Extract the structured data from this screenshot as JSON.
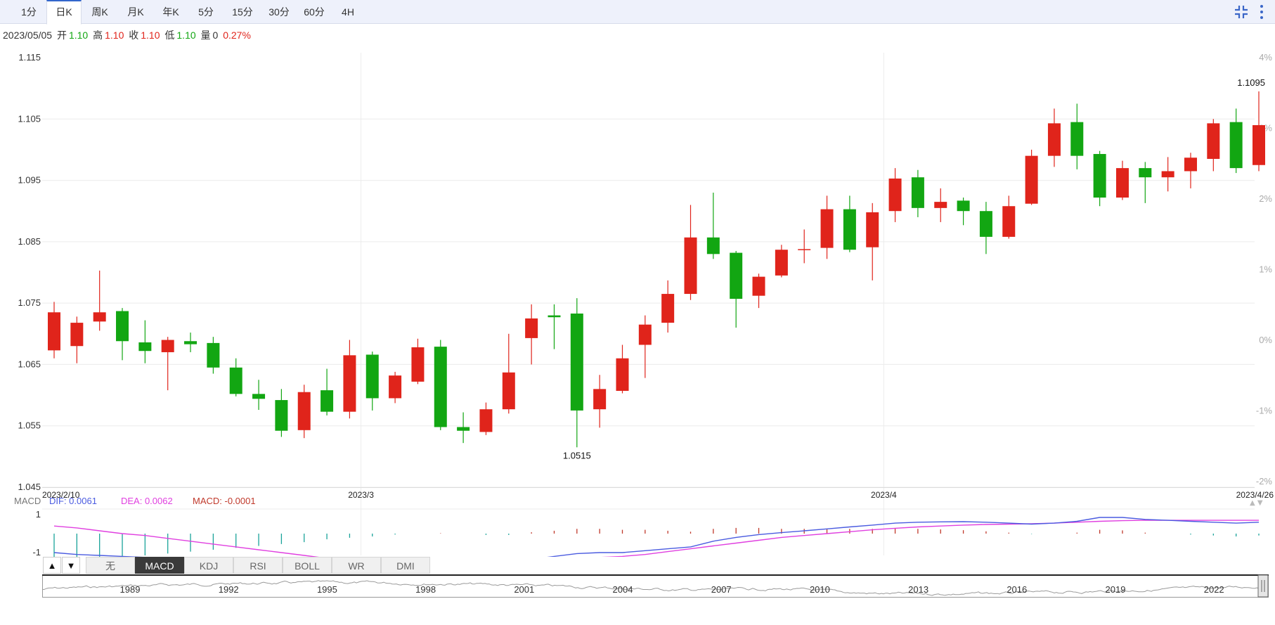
{
  "tabs": [
    {
      "label": "1分",
      "active": false
    },
    {
      "label": "日K",
      "active": true
    },
    {
      "label": "周K",
      "active": false
    },
    {
      "label": "月K",
      "active": false
    },
    {
      "label": "年K",
      "active": false
    },
    {
      "label": "5分",
      "active": false
    },
    {
      "label": "15分",
      "active": false
    },
    {
      "label": "30分",
      "active": false
    },
    {
      "label": "60分",
      "active": false
    },
    {
      "label": "4H",
      "active": false
    }
  ],
  "toolbar": {
    "collapse_icon": "collapse-icon",
    "more_icon": "more-vertical-icon",
    "accent": "#3366cc"
  },
  "info": {
    "date": "2023/05/05",
    "open_label": "开",
    "open": "1.10",
    "high_label": "高",
    "high": "1.10",
    "close_label": "收",
    "close": "1.10",
    "low_label": "低",
    "low": "1.10",
    "volume_label": "量",
    "volume": "0",
    "change": "0.27%"
  },
  "chart_data": {
    "type": "candlestick",
    "up_color": "#e0241b",
    "down_color": "#12a612",
    "y_ticks": [
      "1.115",
      "1.105",
      "1.095",
      "1.085",
      "1.075",
      "1.065",
      "1.055",
      "1.045"
    ],
    "ylim": [
      1.045,
      1.115
    ],
    "pct_ticks": [
      "4%",
      "3%",
      "2%",
      "1%",
      "0%",
      "-1%",
      "-2%"
    ],
    "x_labels": [
      {
        "label": "2023/2/10",
        "index": 0
      },
      {
        "label": "2023/3",
        "index": 13.5
      },
      {
        "label": "2023/4",
        "index": 36.5
      },
      {
        "label": "2023/4/26",
        "index": 52
      }
    ],
    "x_gridlines": [
      13.5,
      36.5
    ],
    "candles": [
      {
        "o": 1.0673,
        "h": 1.0752,
        "l": 1.066,
        "c": 1.0735
      },
      {
        "o": 1.068,
        "h": 1.0728,
        "l": 1.0652,
        "c": 1.0718
      },
      {
        "o": 1.072,
        "h": 1.0803,
        "l": 1.0705,
        "c": 1.0735
      },
      {
        "o": 1.0737,
        "h": 1.0742,
        "l": 1.0657,
        "c": 1.0688
      },
      {
        "o": 1.0686,
        "h": 1.0722,
        "l": 1.0652,
        "c": 1.0672
      },
      {
        "o": 1.067,
        "h": 1.0695,
        "l": 1.0608,
        "c": 1.069
      },
      {
        "o": 1.0688,
        "h": 1.0702,
        "l": 1.067,
        "c": 1.0683
      },
      {
        "o": 1.0685,
        "h": 1.0695,
        "l": 1.0635,
        "c": 1.0645
      },
      {
        "o": 1.0645,
        "h": 1.066,
        "l": 1.0598,
        "c": 1.0602
      },
      {
        "o": 1.0602,
        "h": 1.0625,
        "l": 1.0576,
        "c": 1.0594
      },
      {
        "o": 1.0592,
        "h": 1.061,
        "l": 1.0532,
        "c": 1.0542
      },
      {
        "o": 1.0543,
        "h": 1.0617,
        "l": 1.053,
        "c": 1.0605
      },
      {
        "o": 1.0608,
        "h": 1.0643,
        "l": 1.0567,
        "c": 1.0573
      },
      {
        "o": 1.0573,
        "h": 1.069,
        "l": 1.0562,
        "c": 1.0665
      },
      {
        "o": 1.0666,
        "h": 1.0671,
        "l": 1.0575,
        "c": 1.0595
      },
      {
        "o": 1.0595,
        "h": 1.0638,
        "l": 1.0587,
        "c": 1.0632
      },
      {
        "o": 1.0622,
        "h": 1.0692,
        "l": 1.0618,
        "c": 1.0678
      },
      {
        "o": 1.0679,
        "h": 1.069,
        "l": 1.0543,
        "c": 1.0548
      },
      {
        "o": 1.0548,
        "h": 1.0572,
        "l": 1.0522,
        "c": 1.0542
      },
      {
        "o": 1.054,
        "h": 1.0588,
        "l": 1.0535,
        "c": 1.0577
      },
      {
        "o": 1.0577,
        "h": 1.07,
        "l": 1.057,
        "c": 1.0637
      },
      {
        "o": 1.0693,
        "h": 1.0748,
        "l": 1.065,
        "c": 1.0725
      },
      {
        "o": 1.073,
        "h": 1.0748,
        "l": 1.0675,
        "c": 1.0727
      },
      {
        "o": 1.0733,
        "h": 1.0758,
        "l": 1.0515,
        "c": 1.0575
      },
      {
        "o": 1.0577,
        "h": 1.0633,
        "l": 1.0547,
        "c": 1.061
      },
      {
        "o": 1.0607,
        "h": 1.0682,
        "l": 1.0603,
        "c": 1.066
      },
      {
        "o": 1.0682,
        "h": 1.073,
        "l": 1.0628,
        "c": 1.0715
      },
      {
        "o": 1.0718,
        "h": 1.0787,
        "l": 1.0702,
        "c": 1.0765
      },
      {
        "o": 1.0765,
        "h": 1.091,
        "l": 1.0755,
        "c": 1.0857
      },
      {
        "o": 1.0857,
        "h": 1.093,
        "l": 1.0822,
        "c": 1.083
      },
      {
        "o": 1.0832,
        "h": 1.0835,
        "l": 1.071,
        "c": 1.0757
      },
      {
        "o": 1.0762,
        "h": 1.0798,
        "l": 1.0742,
        "c": 1.0793
      },
      {
        "o": 1.0795,
        "h": 1.0845,
        "l": 1.0792,
        "c": 1.0837
      },
      {
        "o": 1.0838,
        "h": 1.087,
        "l": 1.0815,
        "c": 1.0838
      },
      {
        "o": 1.084,
        "h": 1.0925,
        "l": 1.0822,
        "c": 1.0903
      },
      {
        "o": 1.0903,
        "h": 1.0925,
        "l": 1.0833,
        "c": 1.0837
      },
      {
        "o": 1.0841,
        "h": 1.0913,
        "l": 1.0787,
        "c": 1.0898
      },
      {
        "o": 1.09,
        "h": 1.097,
        "l": 1.0882,
        "c": 1.0953
      },
      {
        "o": 1.0955,
        "h": 1.0967,
        "l": 1.089,
        "c": 1.0905
      },
      {
        "o": 1.0905,
        "h": 1.0937,
        "l": 1.0882,
        "c": 1.0915
      },
      {
        "o": 1.0917,
        "h": 1.0922,
        "l": 1.0877,
        "c": 1.09
      },
      {
        "o": 1.09,
        "h": 1.0915,
        "l": 1.083,
        "c": 1.0858
      },
      {
        "o": 1.0858,
        "h": 1.0925,
        "l": 1.0855,
        "c": 1.0908
      },
      {
        "o": 1.0912,
        "h": 1.1,
        "l": 1.091,
        "c": 1.099
      },
      {
        "o": 1.099,
        "h": 1.1067,
        "l": 1.0972,
        "c": 1.1043
      },
      {
        "o": 1.1045,
        "h": 1.1075,
        "l": 1.0968,
        "c": 1.099
      },
      {
        "o": 1.0993,
        "h": 1.0998,
        "l": 1.0908,
        "c": 1.0922
      },
      {
        "o": 1.0922,
        "h": 1.0982,
        "l": 1.0918,
        "c": 1.097
      },
      {
        "o": 1.097,
        "h": 1.098,
        "l": 1.0913,
        "c": 1.0955
      },
      {
        "o": 1.0955,
        "h": 1.0988,
        "l": 1.0932,
        "c": 1.0965
      },
      {
        "o": 1.0965,
        "h": 1.0995,
        "l": 1.0937,
        "c": 1.0987
      },
      {
        "o": 1.0985,
        "h": 1.105,
        "l": 1.0965,
        "c": 1.1043
      },
      {
        "o": 1.1045,
        "h": 1.1067,
        "l": 1.0962,
        "c": 1.097
      },
      {
        "o": 1.0975,
        "h": 1.1095,
        "l": 1.0965,
        "c": 1.104
      }
    ],
    "annotations": [
      {
        "label": "1.0515",
        "index": 23,
        "value": 1.0515,
        "position": "below"
      },
      {
        "label": "1.1095",
        "index": 53,
        "value": 1.1095,
        "position": "above"
      }
    ],
    "macd": {
      "label": "MACD",
      "dif_label": "DIF: 0.0061",
      "dea_label": "DEA: 0.0062",
      "macd_label": "MACD: -0.0001",
      "dif_color": "#4a5be0",
      "dea_color": "#e040e0",
      "macd_color": "#c0392b",
      "y_ticks": [
        "1",
        "-1"
      ],
      "dif": [
        -1.0,
        -1.1,
        -1.15,
        -1.2,
        -1.25,
        -1.3,
        -1.35,
        -1.4,
        -1.45,
        -1.5,
        -1.55,
        -1.58,
        -1.6,
        -1.62,
        -1.6,
        -1.55,
        -1.5,
        -1.48,
        -1.5,
        -1.55,
        -1.52,
        -1.35,
        -1.2,
        -1.05,
        -1.0,
        -1.0,
        -0.9,
        -0.8,
        -0.7,
        -0.4,
        -0.2,
        -0.05,
        0.05,
        0.15,
        0.25,
        0.35,
        0.45,
        0.55,
        0.6,
        0.62,
        0.63,
        0.6,
        0.55,
        0.5,
        0.55,
        0.65,
        0.85,
        0.85,
        0.75,
        0.7,
        0.65,
        0.6,
        0.55,
        0.6
      ],
      "dea": [
        0.4,
        0.3,
        0.15,
        0.0,
        -0.1,
        -0.25,
        -0.4,
        -0.55,
        -0.7,
        -0.85,
        -1.0,
        -1.15,
        -1.3,
        -1.4,
        -1.45,
        -1.5,
        -1.5,
        -1.5,
        -1.5,
        -1.48,
        -1.45,
        -1.42,
        -1.35,
        -1.3,
        -1.25,
        -1.2,
        -1.1,
        -0.95,
        -0.8,
        -0.65,
        -0.5,
        -0.35,
        -0.2,
        -0.1,
        0.0,
        0.1,
        0.2,
        0.28,
        0.35,
        0.4,
        0.45,
        0.48,
        0.5,
        0.52,
        0.55,
        0.6,
        0.65,
        0.68,
        0.7,
        0.7,
        0.7,
        0.7,
        0.7,
        0.7
      ],
      "hist": [
        -1.4,
        -1.3,
        -1.25,
        -1.2,
        -1.15,
        -1.05,
        -0.95,
        -0.85,
        -0.75,
        -0.65,
        -0.55,
        -0.45,
        -0.3,
        -0.22,
        -0.15,
        -0.05,
        0.0,
        0.02,
        0.0,
        -0.07,
        -0.07,
        0.07,
        0.15,
        0.25,
        0.25,
        0.2,
        0.2,
        0.15,
        0.1,
        0.25,
        0.3,
        0.3,
        0.25,
        0.25,
        0.25,
        0.25,
        0.25,
        0.27,
        0.25,
        0.22,
        0.18,
        0.12,
        0.05,
        -0.02,
        0.0,
        0.05,
        0.2,
        0.17,
        0.05,
        0.0,
        -0.05,
        -0.1,
        -0.15,
        -0.1
      ]
    }
  },
  "indicator_tabs": {
    "up_arrow": "▲",
    "down_arrow": "▼",
    "items": [
      {
        "label": "无",
        "active": false
      },
      {
        "label": "MACD",
        "active": true
      },
      {
        "label": "KDJ",
        "active": false
      },
      {
        "label": "RSI",
        "active": false
      },
      {
        "label": "BOLL",
        "active": false
      },
      {
        "label": "WR",
        "active": false
      },
      {
        "label": "DMI",
        "active": false
      }
    ]
  },
  "navigator": {
    "year_labels": [
      "1989",
      "1992",
      "1995",
      "1998",
      "2001",
      "2004",
      "2007",
      "2010",
      "2013",
      "2016",
      "2019",
      "2022"
    ]
  }
}
